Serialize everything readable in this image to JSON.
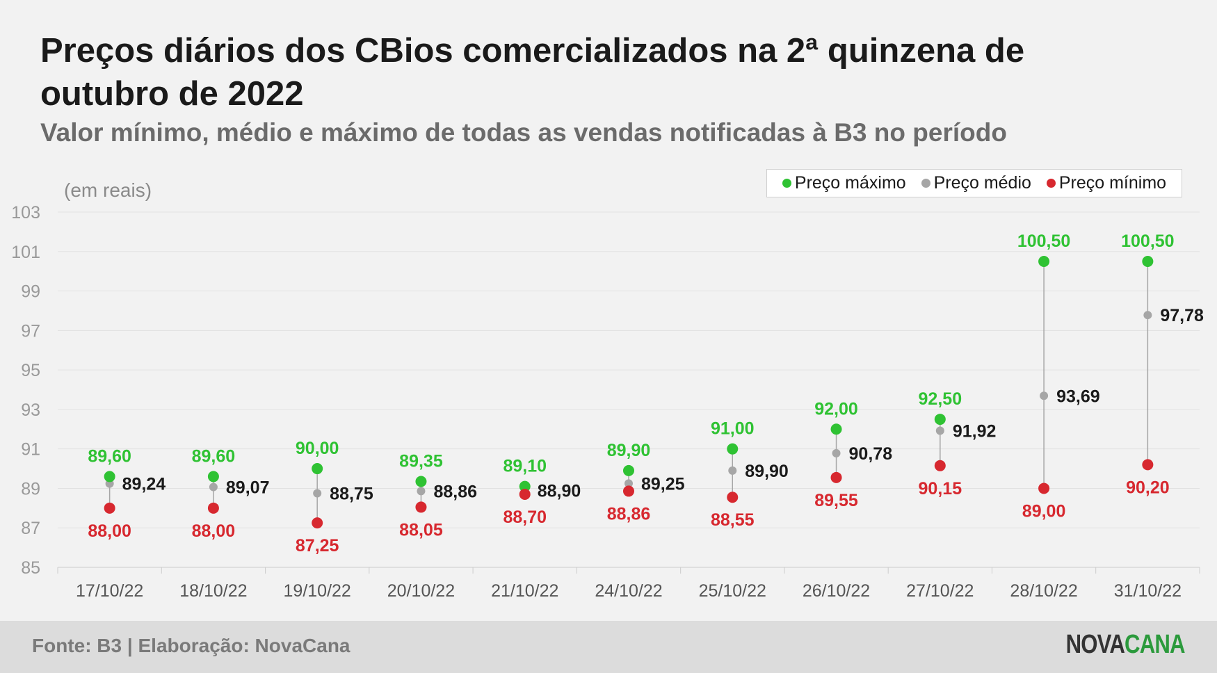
{
  "header": {
    "title": "Preços diários dos CBios comercializados na 2ª quinzena de outubro de 2022",
    "subtitle": "Valor mínimo, médio e máximo de todas as vendas notificadas à B3 no período",
    "unit_label": "(em reais)"
  },
  "colors": {
    "max": "#2fc233",
    "avg": "#a6a6a6",
    "min": "#d7282f",
    "grid": "#e1e1e1",
    "tick": "#999999",
    "avg_label": "#1a1a1a"
  },
  "legend": {
    "items": [
      {
        "label": "Preço máximo",
        "color": "#2fc233"
      },
      {
        "label": "Preço médio",
        "color": "#a6a6a6"
      },
      {
        "label": "Preço mínimo",
        "color": "#d7282f"
      }
    ]
  },
  "footer": {
    "source": "Fonte: B3 | Elaboração: NovaCana",
    "logo_part1": "NOVA",
    "logo_part2": "CANA"
  },
  "chart_data": {
    "type": "scatter",
    "categories": [
      "17/10/22",
      "18/10/22",
      "19/10/22",
      "20/10/22",
      "21/10/22",
      "24/10/22",
      "25/10/22",
      "26/10/22",
      "27/10/22",
      "28/10/22",
      "31/10/22"
    ],
    "series": [
      {
        "name": "Preço máximo",
        "key": "max",
        "values": [
          89.6,
          89.6,
          90.0,
          89.35,
          89.1,
          89.9,
          91.0,
          92.0,
          92.5,
          100.5,
          100.5
        ],
        "labels": [
          "89,60",
          "89,60",
          "90,00",
          "89,35",
          "89,10",
          "89,90",
          "91,00",
          "92,00",
          "92,50",
          "100,50",
          "100,50"
        ]
      },
      {
        "name": "Preço médio",
        "key": "avg",
        "values": [
          89.24,
          89.07,
          88.75,
          88.86,
          88.9,
          89.25,
          89.9,
          90.78,
          91.92,
          93.69,
          97.78
        ],
        "labels": [
          "89,24",
          "89,07",
          "88,75",
          "88,86",
          "88,90",
          "89,25",
          "89,90",
          "90,78",
          "91,92",
          "93,69",
          "97,78"
        ]
      },
      {
        "name": "Preço mínimo",
        "key": "min",
        "values": [
          88.0,
          88.0,
          87.25,
          88.05,
          88.7,
          88.86,
          88.55,
          89.55,
          90.15,
          89.0,
          90.2
        ],
        "labels": [
          "88,00",
          "88,00",
          "87,25",
          "88,05",
          "88,70",
          "88,86",
          "88,55",
          "89,55",
          "90,15",
          "89,00",
          "90,20"
        ]
      }
    ],
    "yticks": [
      85,
      87,
      89,
      91,
      93,
      95,
      97,
      99,
      101,
      103
    ],
    "ylim": [
      85,
      103
    ],
    "grid": true,
    "legend_position": "top-right"
  }
}
